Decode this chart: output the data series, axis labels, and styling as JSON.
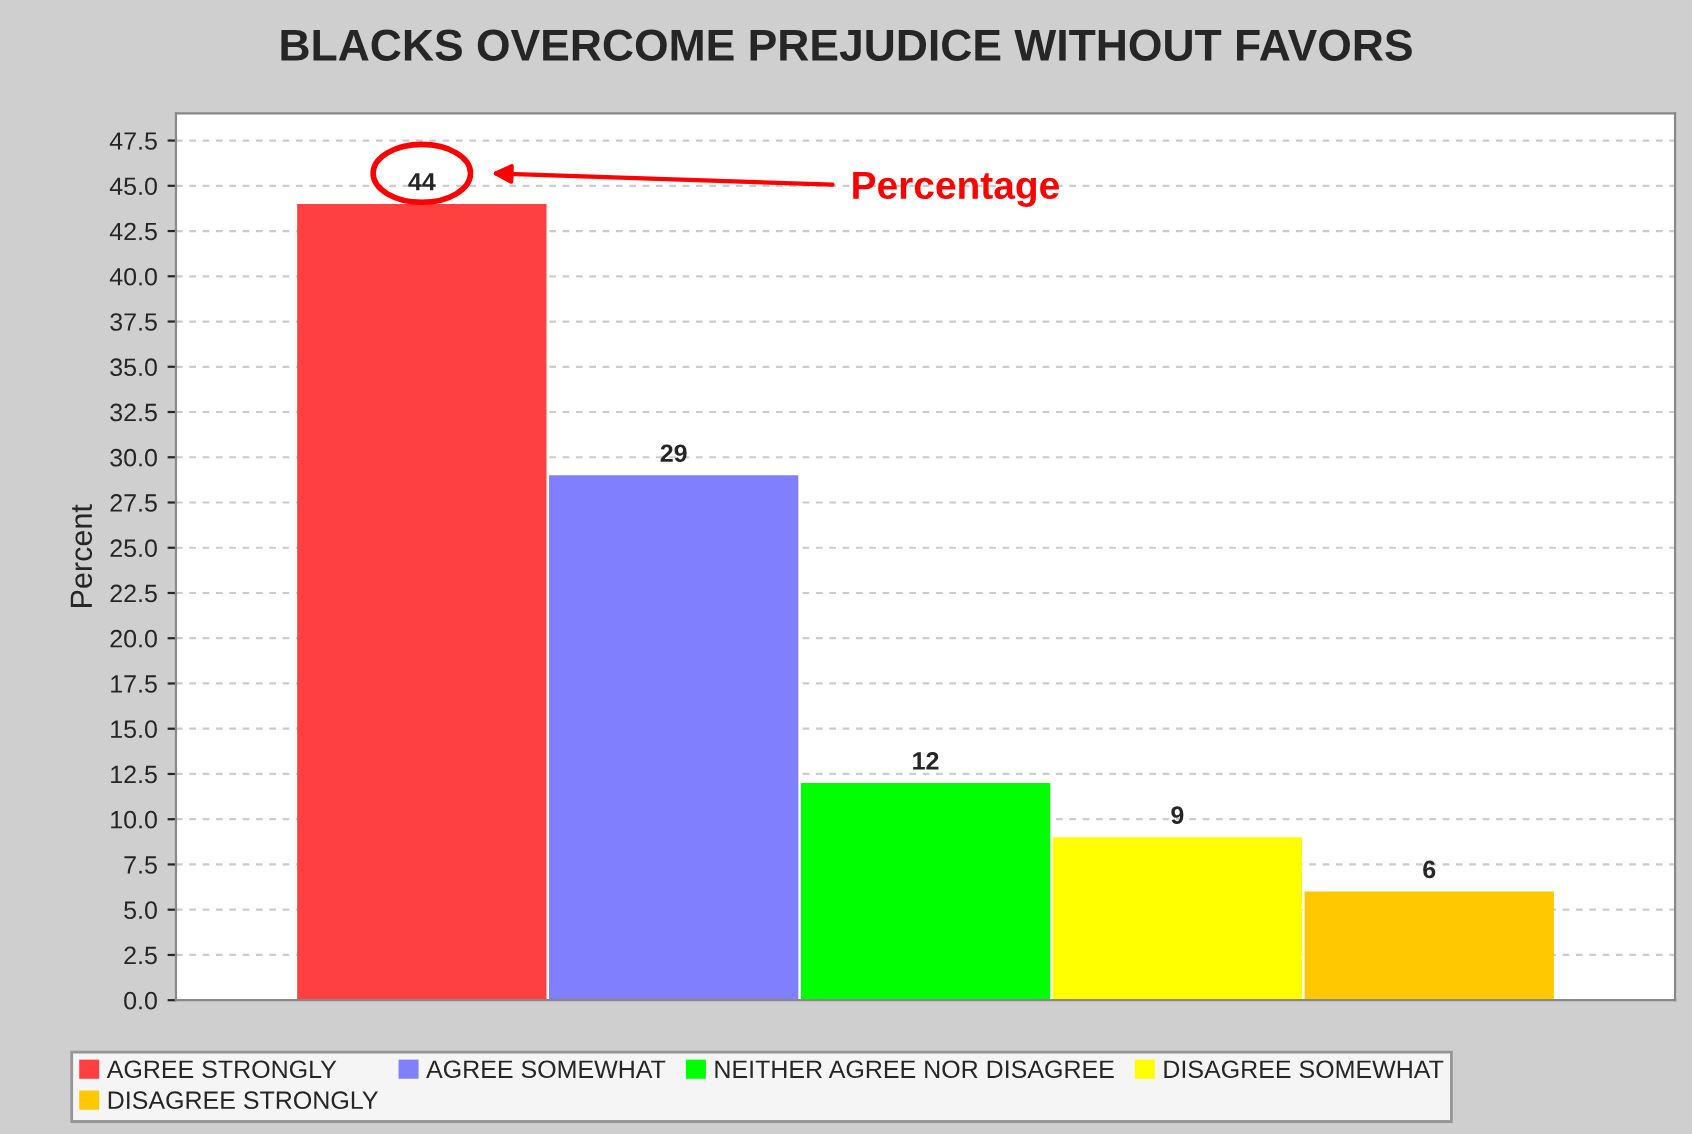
{
  "chart_data": {
    "type": "bar",
    "title": "BLACKS OVERCOME PREJUDICE WITHOUT FAVORS",
    "ylabel": "Percent",
    "categories": [
      null
    ],
    "series": [
      {
        "name": "AGREE STRONGLY",
        "color": "#ff4040",
        "values": [
          44
        ]
      },
      {
        "name": "AGREE SOMEWHAT",
        "color": "#8080ff",
        "values": [
          29
        ]
      },
      {
        "name": "NEITHER AGREE NOR DISAGREE",
        "color": "#00ff00",
        "values": [
          12
        ]
      },
      {
        "name": "DISAGREE SOMEWHAT",
        "color": "#ffff00",
        "values": [
          9
        ]
      },
      {
        "name": "DISAGREE STRONGLY",
        "color": "#ffc800",
        "values": [
          6
        ]
      }
    ],
    "data_labels": true,
    "annotations": [
      "Percentage"
    ],
    "ylim": [
      0,
      49
    ],
    "yticks": [
      {
        "value": 0,
        "label": "0.0"
      },
      {
        "value": 2.5,
        "label": "2.5"
      },
      {
        "value": 5,
        "label": "5.0"
      },
      {
        "value": 7.5,
        "label": "7.5"
      },
      {
        "value": 10,
        "label": "10.0"
      },
      {
        "value": 12.5,
        "label": "12.5"
      },
      {
        "value": 15,
        "label": "15.0"
      },
      {
        "value": 17.5,
        "label": "17.5"
      },
      {
        "value": 20,
        "label": "20.0"
      },
      {
        "value": 22.5,
        "label": "22.5"
      },
      {
        "value": 25,
        "label": "25.0"
      },
      {
        "value": 27.5,
        "label": "27.5"
      },
      {
        "value": 30,
        "label": "30.0"
      },
      {
        "value": 32.5,
        "label": "32.5"
      },
      {
        "value": 35,
        "label": "35.0"
      },
      {
        "value": 37.5,
        "label": "37.5"
      },
      {
        "value": 40,
        "label": "40.0"
      },
      {
        "value": 42.5,
        "label": "42.5"
      },
      {
        "value": 45,
        "label": "45.0"
      },
      {
        "value": 47.5,
        "label": "47.5"
      }
    ],
    "grid": "y",
    "legend": "bottom",
    "tick_labels": "y"
  }
}
